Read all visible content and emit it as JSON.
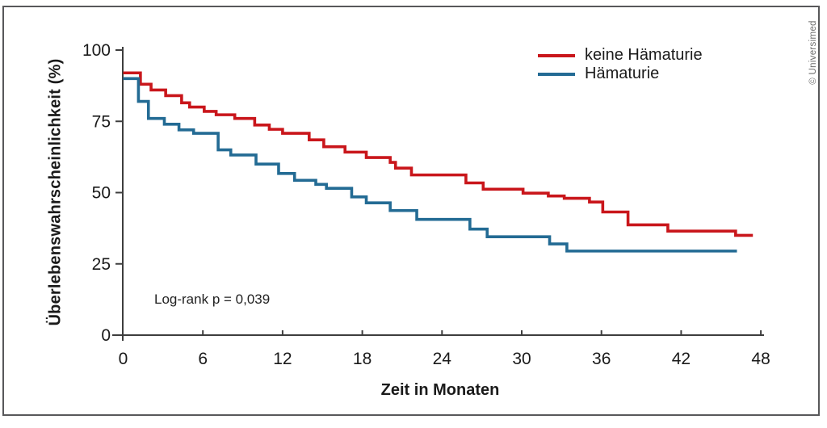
{
  "copyright": "© Universimed",
  "chart_data": {
    "type": "line",
    "subtype": "kaplan-meier-step",
    "title": "",
    "xlabel": "Zeit in Monaten",
    "ylabel": "Überlebenswahrscheinlichkeit (%)",
    "xlim": [
      0,
      48
    ],
    "ylim": [
      0,
      100
    ],
    "x_ticks": [
      0,
      6,
      12,
      18,
      24,
      30,
      36,
      42,
      48
    ],
    "y_ticks": [
      0,
      25,
      50,
      75,
      100
    ],
    "grid": false,
    "legend_position": "inside-top-right",
    "annotation": "Log-rank p = 0,039",
    "axis_color": "#3d3d3d",
    "tick_label_color": "#1a1a1a",
    "series": [
      {
        "name": "keine Hämaturie",
        "color": "#C9161B",
        "start": {
          "t": 0,
          "v": 92
        },
        "end_t": 47.4,
        "steps": [
          [
            1.3,
            88
          ],
          [
            2.1,
            86
          ],
          [
            3.2,
            84
          ],
          [
            4.4,
            81.5
          ],
          [
            5.0,
            80
          ],
          [
            6.1,
            78.5
          ],
          [
            7.0,
            77.3
          ],
          [
            8.4,
            76
          ],
          [
            9.9,
            73.7
          ],
          [
            11.0,
            72.2
          ],
          [
            12.0,
            70.8
          ],
          [
            14.0,
            68.5
          ],
          [
            15.1,
            66.1
          ],
          [
            16.7,
            64.2
          ],
          [
            18.3,
            62.3
          ],
          [
            20.1,
            60.6
          ],
          [
            20.5,
            58.6
          ],
          [
            21.7,
            56.2
          ],
          [
            25.8,
            53.4
          ],
          [
            27.1,
            51.2
          ],
          [
            30.1,
            49.8
          ],
          [
            32.0,
            48.8
          ],
          [
            33.2,
            48.0
          ],
          [
            35.1,
            46.7
          ],
          [
            36.1,
            43.2
          ],
          [
            38.0,
            38.7
          ],
          [
            41.0,
            36.5
          ],
          [
            46.1,
            35.0
          ]
        ]
      },
      {
        "name": "Hämaturie",
        "color": "#236B94",
        "start": {
          "t": 0,
          "v": 90
        },
        "end_t": 46.2,
        "steps": [
          [
            1.15,
            82
          ],
          [
            1.9,
            76
          ],
          [
            3.1,
            74
          ],
          [
            4.2,
            72
          ],
          [
            5.3,
            70.8
          ],
          [
            7.15,
            65
          ],
          [
            8.1,
            63.2
          ],
          [
            10.0,
            60
          ],
          [
            11.7,
            56.7
          ],
          [
            12.9,
            54.3
          ],
          [
            14.5,
            52.9
          ],
          [
            15.3,
            51.5
          ],
          [
            17.2,
            48.5
          ],
          [
            18.3,
            46.4
          ],
          [
            20.1,
            43.7
          ],
          [
            22.1,
            40.6
          ],
          [
            26.1,
            37.2
          ],
          [
            27.4,
            34.5
          ],
          [
            32.1,
            32.0
          ],
          [
            33.4,
            29.5
          ]
        ]
      }
    ]
  }
}
